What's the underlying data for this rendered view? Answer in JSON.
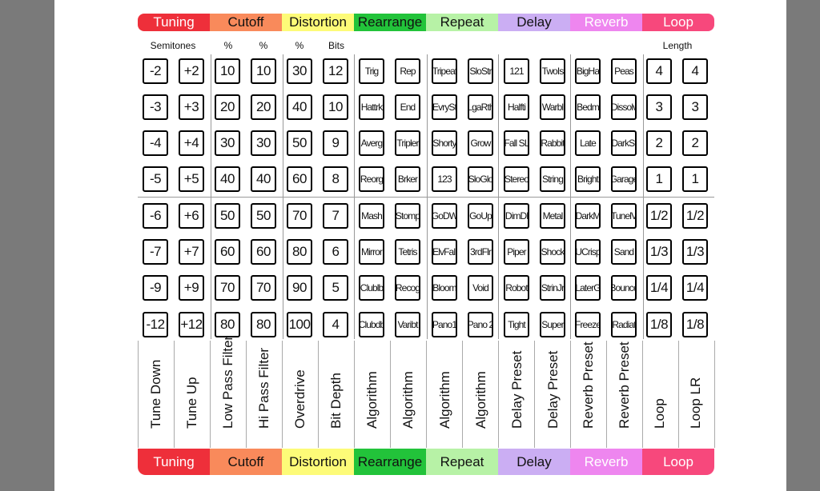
{
  "sections": [
    {
      "name": "Tuning",
      "color": "#ee2f3a",
      "text_color": "#ffffff"
    },
    {
      "name": "Cutoff",
      "color": "#f98a5b",
      "text_color": "#111111"
    },
    {
      "name": "Distortion",
      "color": "#fdfb78",
      "text_color": "#111111"
    },
    {
      "name": "Rearrange",
      "color": "#22c33a",
      "text_color": "#111111"
    },
    {
      "name": "Repeat",
      "color": "#b7f2a6",
      "text_color": "#111111"
    },
    {
      "name": "Delay",
      "color": "#cbaef3",
      "text_color": "#111111"
    },
    {
      "name": "Reverb",
      "color": "#ee86ef",
      "text_color": "#ffffff"
    },
    {
      "name": "Loop",
      "color": "#f7487c",
      "text_color": "#ffffff"
    }
  ],
  "headers": [
    "Semitones",
    "%",
    "%",
    "%",
    "Bits",
    "Length"
  ],
  "columns": [
    {
      "label": "Tune Down",
      "buttons": [
        "-2",
        "-3",
        "-4",
        "-5",
        "-6",
        "-7",
        "-9",
        "-12"
      ]
    },
    {
      "label": "Tune Up",
      "buttons": [
        "+2",
        "+3",
        "+4",
        "+5",
        "+6",
        "+7",
        "+9",
        "+12"
      ]
    },
    {
      "label": "Low Pass Filter",
      "buttons": [
        "10",
        "20",
        "30",
        "40",
        "50",
        "60",
        "70",
        "80"
      ]
    },
    {
      "label": "Hi Pass Filter",
      "buttons": [
        "10",
        "20",
        "30",
        "40",
        "50",
        "60",
        "70",
        "80"
      ]
    },
    {
      "label": "Overdrive",
      "buttons": [
        "30",
        "40",
        "50",
        "60",
        "70",
        "80",
        "90",
        "100"
      ]
    },
    {
      "label": "Bit Depth",
      "buttons": [
        "12",
        "10",
        "9",
        "8",
        "7",
        "6",
        "5",
        "4"
      ]
    },
    {
      "label": "Algorithm",
      "buttons": [
        "Trig",
        "Hattrk",
        "Averg",
        "Reorg",
        "Mash",
        "Mirror",
        "Clublb",
        "Clubdb"
      ]
    },
    {
      "label": "Algorithm",
      "buttons": [
        "Rep",
        "End",
        "Tripler",
        "Brker",
        "Stomp",
        "Tetris",
        "Recog",
        "Varibt"
      ]
    },
    {
      "label": "Algorithm",
      "buttons": [
        "Tripeat",
        "EvrySt",
        "Shorty",
        "123",
        "GoDW",
        "ElvFall",
        "Bloom",
        "Pano1"
      ]
    },
    {
      "label": "Algorithm",
      "buttons": [
        "SloStr",
        "LgaRth",
        "Grow",
        "SloGlo",
        "GoUp",
        "3rdFlr",
        "Void",
        "Pano 2"
      ]
    },
    {
      "label": "Delay Preset",
      "buttons": [
        "121",
        "Halfti",
        "Fall SL",
        "Stereo",
        "DimDl",
        "Piper",
        "Robot",
        "Tight"
      ]
    },
    {
      "label": "Delay Preset",
      "buttons": [
        "TwoIs",
        "Warbl",
        "Rabbit",
        "String",
        "Metal",
        "Shock",
        "StrinJr",
        "Super"
      ]
    },
    {
      "label": "Reverb Preset",
      "buttons": [
        "BigHa",
        "Bedm",
        "Late",
        "Bright",
        "DarkM",
        "UCrisp",
        "LaterG",
        "Freeze"
      ]
    },
    {
      "label": "Reverb Preset",
      "buttons": [
        "Peas",
        "Dissolv",
        "DarkSt",
        "Garage",
        "TunelV",
        "Sand",
        "Bounce",
        "Radiat"
      ]
    },
    {
      "label": "Loop",
      "buttons": [
        "4",
        "3",
        "2",
        "1",
        "1/2",
        "1/3",
        "1/4",
        "1/8"
      ]
    },
    {
      "label": "Loop LR",
      "buttons": [
        "4",
        "3",
        "2",
        "1",
        "1/2",
        "1/3",
        "1/4",
        "1/8"
      ]
    }
  ]
}
